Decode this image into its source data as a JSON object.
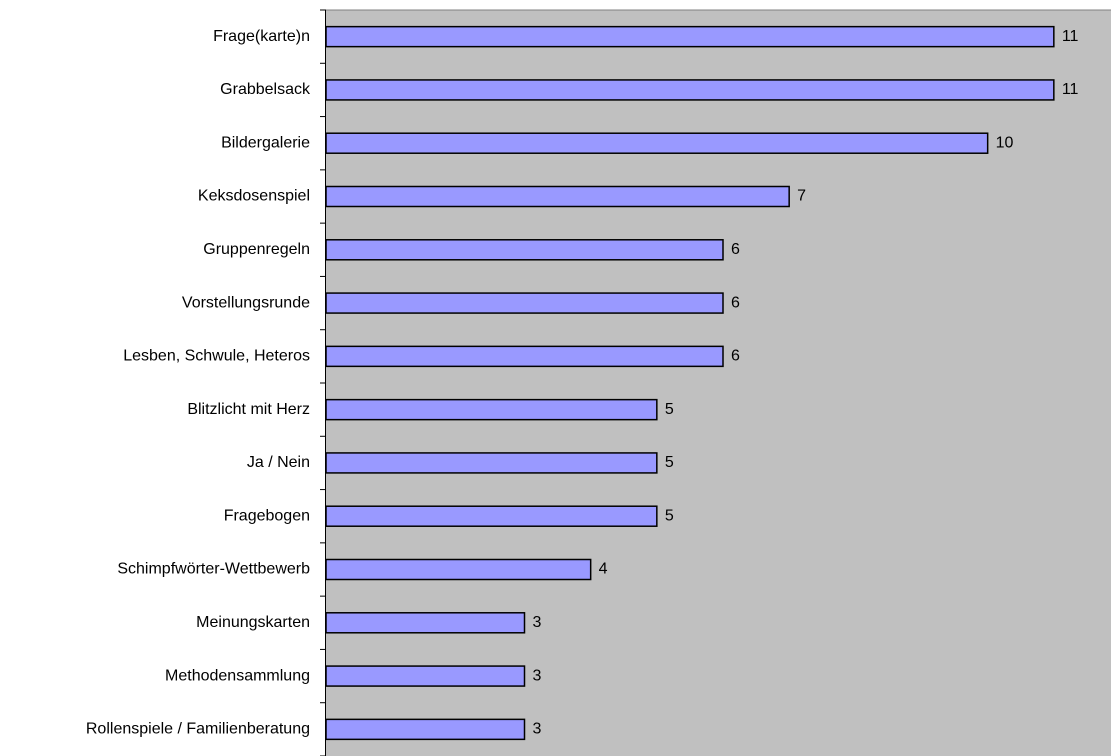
{
  "chart_data": {
    "type": "hbar",
    "categories": [
      "Frage(karte)n",
      "Grabbelsack",
      "Bildergalerie",
      "Keksdosenspiel",
      "Gruppenregeln",
      "Vorstellungsrunde",
      "Lesben, Schwule, Heteros",
      "Blitzlicht mit Herz",
      "Ja / Nein",
      "Fragebogen",
      "Schimpfwörter-Wettbewerb",
      "Meinungskarten",
      "Methodensammlung",
      "Rollenspiele / Familienberatung"
    ],
    "values": [
      11,
      11,
      10,
      7,
      6,
      6,
      6,
      5,
      5,
      5,
      4,
      3,
      3,
      3
    ],
    "color": "#9999ff",
    "background": "#c0c0c0",
    "xlim": [
      0,
      12
    ]
  }
}
